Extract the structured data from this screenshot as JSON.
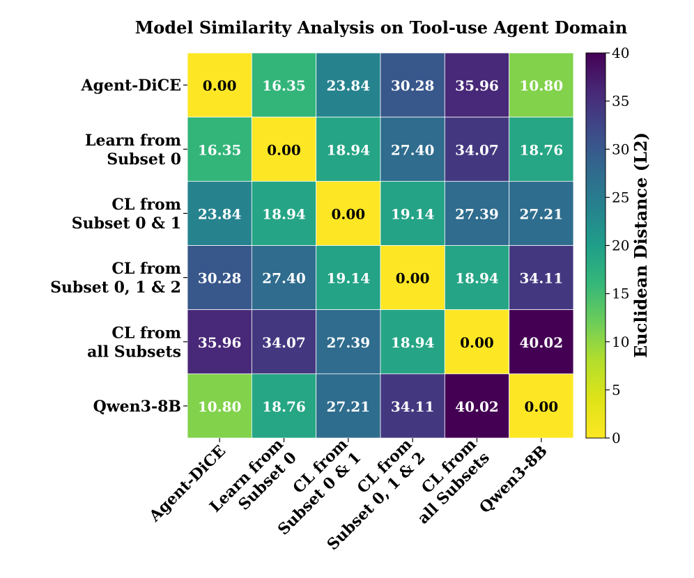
{
  "chart_data": {
    "type": "heatmap",
    "title": "Model Similarity Analysis on Tool-use Agent Domain",
    "row_labels": [
      [
        "Agent-DiCE"
      ],
      [
        "Learn from",
        "Subset 0"
      ],
      [
        "CL from",
        "Subset 0 & 1"
      ],
      [
        "CL from",
        "Subset 0, 1 & 2"
      ],
      [
        "CL from",
        "all Subsets"
      ],
      [
        "Qwen3-8B"
      ]
    ],
    "col_labels": [
      [
        "Agent-DiCE"
      ],
      [
        "Learn from",
        "Subset 0"
      ],
      [
        "CL from",
        "Subset 0 & 1"
      ],
      [
        "CL from",
        "Subset 0, 1 & 2"
      ],
      [
        "CL from",
        "all Subsets"
      ],
      [
        "Qwen3-8B"
      ]
    ],
    "values": [
      [
        0.0,
        16.35,
        23.84,
        30.28,
        35.96,
        10.8
      ],
      [
        16.35,
        0.0,
        18.94,
        27.4,
        34.07,
        18.76
      ],
      [
        23.84,
        18.94,
        0.0,
        19.14,
        27.39,
        27.21
      ],
      [
        30.28,
        27.4,
        19.14,
        0.0,
        18.94,
        34.11
      ],
      [
        35.96,
        34.07,
        27.39,
        18.94,
        0.0,
        40.02
      ],
      [
        10.8,
        18.76,
        27.21,
        34.11,
        40.02,
        0.0
      ]
    ],
    "value_format": "2 decimals",
    "colorbar": {
      "label": "Euclidean Distance (L2)",
      "range": [
        0,
        40
      ],
      "ticks": [
        0,
        5,
        10,
        15,
        20,
        25,
        30,
        35,
        40
      ],
      "colormap": "viridis_r"
    }
  }
}
